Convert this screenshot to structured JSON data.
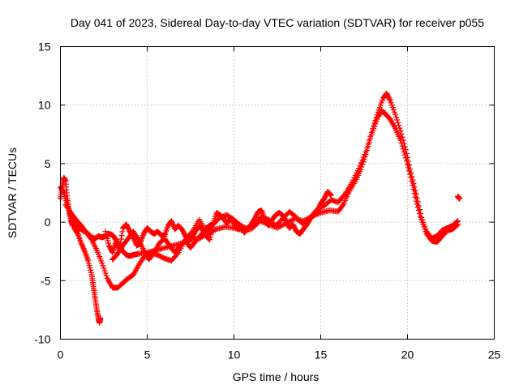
{
  "chart_data": {
    "type": "scatter",
    "title": "Day 041 of 2023, Sidereal Day-to-day VTEC variation (SDTVAR) for receiver p055",
    "xlabel": "GPS time / hours",
    "ylabel": "SDTVAR / TECUs",
    "xlim": [
      0,
      25
    ],
    "ylim": [
      -10,
      15
    ],
    "xticks": [
      0,
      5,
      10,
      15,
      20,
      25
    ],
    "yticks": [
      -10,
      -5,
      0,
      5,
      10,
      15
    ],
    "xtick_labels": [
      "0",
      "5",
      "10",
      "15",
      "20",
      "25"
    ],
    "ytick_labels": [
      "-10",
      "-5",
      "0",
      "5",
      "10",
      "15"
    ],
    "grid": true,
    "marker": "+",
    "series": [
      {
        "name": "SDTVAR",
        "color": "#ff0000",
        "segments": [
          [
            [
              0.0,
              2.0
            ],
            [
              0.1,
              3.0
            ],
            [
              0.2,
              3.8
            ],
            [
              0.3,
              3.5
            ],
            [
              0.4,
              2.0
            ],
            [
              0.5,
              1.0
            ],
            [
              0.6,
              0.2
            ],
            [
              0.7,
              -0.3
            ],
            [
              0.8,
              -0.2
            ],
            [
              1.0,
              -0.5
            ],
            [
              1.2,
              -0.6
            ],
            [
              1.4,
              -0.8
            ],
            [
              1.6,
              -1.0
            ],
            [
              1.8,
              -1.3
            ],
            [
              2.0,
              -1.4
            ],
            [
              2.2,
              -1.2
            ],
            [
              2.4,
              -1.3
            ],
            [
              2.6,
              -1.2
            ],
            [
              2.8,
              -1.0
            ],
            [
              3.0,
              -1.1
            ],
            [
              3.2,
              -1.5
            ],
            [
              3.4,
              -2.0
            ],
            [
              3.6,
              -2.5
            ],
            [
              3.8,
              -2.8
            ],
            [
              4.0,
              -2.9
            ],
            [
              4.2,
              -2.8
            ],
            [
              4.5,
              -2.7
            ],
            [
              5.0,
              -2.6
            ],
            [
              5.5,
              -2.4
            ],
            [
              6.0,
              -2.2
            ],
            [
              6.5,
              -2.0
            ],
            [
              7.0,
              -1.8
            ],
            [
              7.5,
              -1.5
            ],
            [
              8.0,
              -1.4
            ],
            [
              8.5,
              -1.0
            ],
            [
              9.0,
              -0.6
            ],
            [
              9.5,
              -0.4
            ],
            [
              10.0,
              -0.5
            ],
            [
              10.5,
              -0.7
            ],
            [
              11.0,
              -0.6
            ],
            [
              11.5,
              0.1
            ],
            [
              12.0,
              -0.2
            ],
            [
              12.5,
              -0.5
            ],
            [
              13.0,
              -0.1
            ],
            [
              13.5,
              0.3
            ],
            [
              14.0,
              0.1
            ],
            [
              14.5,
              0.5
            ],
            [
              15.0,
              0.8
            ],
            [
              15.5,
              1.0
            ],
            [
              16.0,
              0.9
            ],
            [
              16.3,
              1.5
            ],
            [
              16.6,
              2.5
            ],
            [
              17.0,
              3.5
            ],
            [
              17.3,
              4.5
            ],
            [
              17.6,
              5.8
            ],
            [
              18.0,
              7.8
            ],
            [
              18.3,
              9.0
            ],
            [
              18.5,
              9.5
            ],
            [
              18.7,
              9.3
            ],
            [
              19.0,
              8.8
            ],
            [
              19.3,
              8.0
            ],
            [
              19.6,
              7.0
            ],
            [
              19.9,
              5.5
            ],
            [
              20.2,
              3.8
            ],
            [
              20.5,
              1.8
            ],
            [
              20.8,
              0.2
            ],
            [
              21.1,
              -1.0
            ],
            [
              21.4,
              -1.6
            ],
            [
              21.7,
              -1.7
            ],
            [
              22.0,
              -1.2
            ],
            [
              22.3,
              -0.7
            ],
            [
              22.6,
              -0.6
            ],
            [
              22.9,
              -0.2
            ]
          ],
          [
            [
              0.0,
              3.0
            ],
            [
              0.2,
              2.5
            ],
            [
              0.4,
              1.5
            ],
            [
              0.6,
              0.5
            ],
            [
              0.8,
              -0.5
            ],
            [
              1.0,
              -1.0
            ],
            [
              1.2,
              -1.8
            ],
            [
              1.4,
              -2.5
            ],
            [
              1.6,
              -3.3
            ],
            [
              1.8,
              -4.5
            ],
            [
              1.9,
              -5.5
            ],
            [
              2.0,
              -6.5
            ],
            [
              2.1,
              -7.5
            ],
            [
              2.2,
              -8.3
            ],
            [
              2.25,
              -8.6
            ],
            [
              2.3,
              -8.2
            ]
          ],
          [
            [
              0.3,
              1.5
            ],
            [
              0.6,
              0.8
            ],
            [
              0.9,
              0.2
            ],
            [
              1.2,
              -0.3
            ],
            [
              1.5,
              -0.9
            ],
            [
              1.8,
              -1.5
            ],
            [
              2.1,
              -2.4
            ],
            [
              2.4,
              -3.5
            ],
            [
              2.7,
              -4.8
            ],
            [
              3.0,
              -5.6
            ],
            [
              3.3,
              -5.6
            ],
            [
              3.6,
              -5.2
            ],
            [
              3.9,
              -4.8
            ],
            [
              4.2,
              -4.5
            ],
            [
              4.5,
              -3.7
            ],
            [
              4.8,
              -3.0
            ],
            [
              5.2,
              -2.6
            ],
            [
              5.6,
              -2.8
            ],
            [
              6.0,
              -3.1
            ],
            [
              6.4,
              -3.3
            ],
            [
              6.8,
              -2.6
            ],
            [
              7.2,
              -1.5
            ],
            [
              7.6,
              -0.8
            ],
            [
              8.0,
              0.2
            ],
            [
              8.4,
              -0.8
            ],
            [
              8.8,
              -0.2
            ],
            [
              9.2,
              0.4
            ],
            [
              9.6,
              0.6
            ],
            [
              10.0,
              0.2
            ],
            [
              10.4,
              -0.3
            ],
            [
              10.8,
              -0.6
            ],
            [
              11.2,
              -0.2
            ],
            [
              11.6,
              0.5
            ],
            [
              12.0,
              0.2
            ],
            [
              12.4,
              -0.3
            ],
            [
              12.8,
              0.3
            ],
            [
              13.2,
              0.9
            ],
            [
              13.6,
              0.4
            ],
            [
              14.0,
              -0.2
            ],
            [
              14.4,
              0.4
            ],
            [
              14.8,
              1.1
            ],
            [
              15.2,
              1.4
            ],
            [
              15.6,
              1.9
            ],
            [
              16.0,
              1.7
            ],
            [
              16.4,
              2.4
            ],
            [
              16.8,
              3.4
            ],
            [
              17.2,
              4.6
            ],
            [
              17.6,
              6.0
            ],
            [
              18.0,
              8.0
            ],
            [
              18.3,
              9.4
            ],
            [
              18.6,
              10.6
            ],
            [
              18.8,
              11.0
            ],
            [
              19.0,
              10.4
            ],
            [
              19.3,
              9.2
            ],
            [
              19.6,
              7.8
            ],
            [
              19.9,
              6.2
            ],
            [
              20.2,
              4.2
            ],
            [
              20.5,
              2.4
            ],
            [
              20.8,
              0.4
            ],
            [
              21.1,
              -0.8
            ],
            [
              21.4,
              -1.4
            ],
            [
              21.7,
              -1.2
            ],
            [
              22.0,
              -0.7
            ],
            [
              22.3,
              -0.5
            ],
            [
              22.6,
              -0.3
            ],
            [
              22.9,
              0.1
            ]
          ],
          [
            [
              2.6,
              -0.8
            ],
            [
              2.8,
              -2.0
            ],
            [
              3.0,
              -2.6
            ],
            [
              3.2,
              -1.7
            ],
            [
              3.4,
              -2.4
            ],
            [
              3.6,
              -0.5
            ],
            [
              3.8,
              -0.2
            ],
            [
              4.0,
              -0.8
            ],
            [
              4.2,
              -1.3
            ],
            [
              4.4,
              -2.0
            ],
            [
              4.6,
              -1.8
            ],
            [
              4.8,
              -1.0
            ],
            [
              5.0,
              -0.5
            ],
            [
              5.2,
              -0.8
            ],
            [
              5.4,
              -1.0
            ],
            [
              5.6,
              -0.8
            ],
            [
              5.8,
              -1.1
            ],
            [
              6.0,
              -1.2
            ],
            [
              6.2,
              -0.3
            ],
            [
              6.4,
              0.1
            ],
            [
              6.6,
              -0.6
            ],
            [
              6.8,
              -0.3
            ],
            [
              7.0,
              -0.6
            ],
            [
              7.2,
              -1.2
            ],
            [
              7.4,
              -1.6
            ],
            [
              7.6,
              -1.3
            ],
            [
              7.8,
              -0.7
            ],
            [
              8.0,
              -0.4
            ],
            [
              8.2,
              -0.6
            ],
            [
              8.4,
              -1.2
            ],
            [
              8.6,
              -1.5
            ],
            [
              8.8,
              -0.2
            ],
            [
              9.0,
              0.8
            ],
            [
              9.2,
              0.6
            ],
            [
              9.4,
              0.3
            ],
            [
              9.6,
              -0.1
            ],
            [
              9.8,
              0.3
            ],
            [
              10.0,
              -0.1
            ],
            [
              10.2,
              -0.6
            ],
            [
              10.4,
              -0.4
            ],
            [
              10.6,
              -0.9
            ],
            [
              10.8,
              -0.5
            ],
            [
              11.0,
              -0.2
            ],
            [
              11.2,
              0.3
            ],
            [
              11.4,
              0.9
            ],
            [
              11.6,
              1.0
            ],
            [
              11.8,
              0.1
            ],
            [
              12.0,
              -0.3
            ],
            [
              12.2,
              0.2
            ],
            [
              12.4,
              0.6
            ],
            [
              12.6,
              0.8
            ],
            [
              12.8,
              0.6
            ],
            [
              13.0,
              0.1
            ],
            [
              13.2,
              -0.5
            ],
            [
              13.4,
              -0.2
            ],
            [
              13.6,
              -0.8
            ],
            [
              13.8,
              -1.0
            ],
            [
              14.0,
              -0.6
            ],
            [
              14.2,
              -0.2
            ],
            [
              14.4,
              0.3
            ],
            [
              14.6,
              0.6
            ],
            [
              14.8,
              0.9
            ],
            [
              15.0,
              1.6
            ],
            [
              15.2,
              2.0
            ],
            [
              15.4,
              2.6
            ],
            [
              15.6,
              2.3
            ]
          ],
          [
            [
              3.0,
              -3.2
            ],
            [
              3.3,
              -2.7
            ],
            [
              3.6,
              -2.0
            ],
            [
              3.9,
              -1.4
            ],
            [
              4.2,
              -0.8
            ],
            [
              4.5,
              -1.5
            ],
            [
              4.8,
              -2.4
            ],
            [
              5.1,
              -3.2
            ],
            [
              5.4,
              -2.6
            ],
            [
              5.7,
              -1.8
            ],
            [
              6.0,
              -1.4
            ],
            [
              6.3,
              -2.0
            ],
            [
              6.6,
              -2.6
            ],
            [
              6.9,
              -2.0
            ],
            [
              7.2,
              -1.6
            ],
            [
              7.5,
              -2.2
            ],
            [
              7.8,
              -1.6
            ],
            [
              8.1,
              -1.1
            ],
            [
              8.4,
              -0.5
            ],
            [
              8.7,
              -0.2
            ]
          ],
          [
            [
              22.9,
              2.2
            ],
            [
              22.95,
              2.1
            ],
            [
              23.0,
              2.0
            ]
          ]
        ]
      }
    ]
  }
}
